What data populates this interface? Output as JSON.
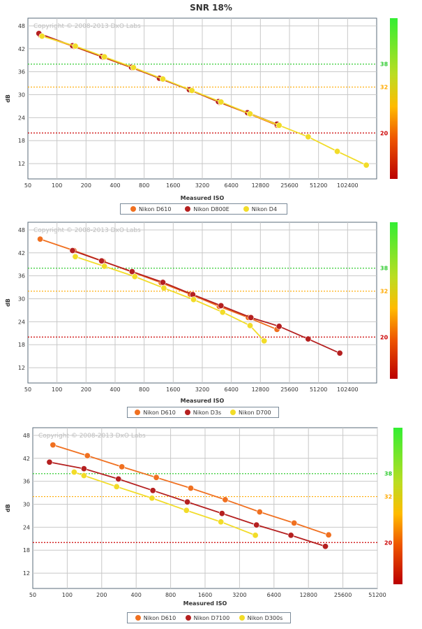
{
  "page": {
    "title": "SNR 18%"
  },
  "chart_data": [
    {
      "type": "line",
      "title": "SNR 18%",
      "watermark": "Copyright © 2008-2013 DxO Labs",
      "xlabel": "Measured ISO",
      "ylabel": "dB",
      "x_scale": "log2",
      "x_ticks": [
        50,
        100,
        200,
        400,
        800,
        1600,
        3200,
        6400,
        12800,
        25600,
        51200,
        102400
      ],
      "xlim": [
        50,
        204800
      ],
      "y_ticks": [
        12,
        18,
        24,
        30,
        36,
        42,
        48
      ],
      "ylim": [
        8,
        50
      ],
      "grid": true,
      "legend_position": "bottom",
      "reference_lines": [
        {
          "value": 38,
          "label": "38",
          "color": "#33cc33"
        },
        {
          "value": 32,
          "label": "32",
          "color": "#ffaa00"
        },
        {
          "value": 20,
          "label": "20",
          "color": "#cc0000"
        }
      ],
      "series": [
        {
          "name": "Nikon D610",
          "color": "#f07020",
          "x": [
            67,
            150,
            300,
            600,
            1200,
            2400,
            4800,
            9600,
            19000
          ],
          "y": [
            45.6,
            42.6,
            39.8,
            37.0,
            34.2,
            31.2,
            28.0,
            25.1,
            22.0
          ]
        },
        {
          "name": "Nikon D800E",
          "color": "#b52020",
          "x": [
            65,
            145,
            290,
            590,
            1150,
            2350,
            4700,
            9400,
            19000
          ],
          "y": [
            46.0,
            42.8,
            40.0,
            37.2,
            34.3,
            31.3,
            28.2,
            25.3,
            22.3
          ]
        },
        {
          "name": "Nikon D4",
          "color": "#f2dc28",
          "x": [
            70,
            155,
            310,
            620,
            1250,
            2500,
            5000,
            10000,
            20000,
            40000,
            80000,
            160000
          ],
          "y": [
            45.3,
            42.7,
            39.9,
            37.1,
            34.1,
            31.1,
            28.1,
            25.0,
            22.0,
            19.0,
            15.2,
            11.6
          ]
        }
      ]
    },
    {
      "type": "line",
      "watermark": "Copyright © 2008-2013 DxO Labs",
      "xlabel": "Measured ISO",
      "ylabel": "dB",
      "x_scale": "log2",
      "x_ticks": [
        50,
        100,
        200,
        400,
        800,
        1600,
        3200,
        6400,
        12800,
        25600,
        51200,
        102400
      ],
      "xlim": [
        50,
        204800
      ],
      "y_ticks": [
        12,
        18,
        24,
        30,
        36,
        42,
        48
      ],
      "ylim": [
        8,
        50
      ],
      "grid": true,
      "legend_position": "bottom",
      "reference_lines": [
        {
          "value": 38,
          "label": "38",
          "color": "#33cc33"
        },
        {
          "value": 32,
          "label": "32",
          "color": "#ffaa00"
        },
        {
          "value": 20,
          "label": "20",
          "color": "#cc0000"
        }
      ],
      "series": [
        {
          "name": "Nikon D610",
          "color": "#f07020",
          "x": [
            67,
            150,
            300,
            600,
            1200,
            2400,
            4800,
            9600,
            19000
          ],
          "y": [
            45.6,
            42.6,
            39.8,
            37.0,
            34.2,
            31.2,
            28.0,
            25.1,
            22.0
          ]
        },
        {
          "name": "Nikon D3s",
          "color": "#b52020",
          "x": [
            145,
            290,
            600,
            1250,
            2550,
            5000,
            10200,
            20000,
            40000,
            85000
          ],
          "y": [
            42.6,
            39.9,
            37.1,
            34.3,
            31.1,
            28.2,
            25.1,
            22.8,
            19.5,
            15.8
          ]
        },
        {
          "name": "Nikon D700",
          "color": "#f2dc28",
          "x": [
            155,
            310,
            640,
            1280,
            2600,
            5200,
            10000,
            14000
          ],
          "y": [
            41.0,
            38.5,
            35.8,
            32.8,
            29.8,
            26.5,
            23.0,
            19.0
          ]
        }
      ]
    },
    {
      "type": "line",
      "watermark": "Copyright © 2008-2013 DxO Labs",
      "xlabel": "Measured ISO",
      "ylabel": "dB",
      "x_scale": "log2",
      "x_ticks": [
        50,
        100,
        200,
        400,
        800,
        1600,
        3200,
        6400,
        12800,
        25600,
        51200
      ],
      "xlim": [
        50,
        51200
      ],
      "y_ticks": [
        12,
        18,
        24,
        30,
        36,
        42,
        48
      ],
      "ylim": [
        8,
        50
      ],
      "grid": true,
      "legend_position": "bottom",
      "reference_lines": [
        {
          "value": 38,
          "label": "38",
          "color": "#33cc33"
        },
        {
          "value": 32,
          "label": "32",
          "color": "#ffaa00"
        },
        {
          "value": 20,
          "label": "20",
          "color": "#cc0000"
        }
      ],
      "series": [
        {
          "name": "Nikon D610",
          "color": "#f07020",
          "x": [
            75,
            150,
            300,
            600,
            1200,
            2400,
            4800,
            9600,
            19200
          ],
          "y": [
            45.5,
            42.7,
            39.8,
            37.0,
            34.2,
            31.2,
            28.0,
            25.1,
            22.0
          ]
        },
        {
          "name": "Nikon D7100",
          "color": "#b52020",
          "x": [
            70,
            140,
            280,
            560,
            1120,
            2250,
            4500,
            9000,
            18000
          ],
          "y": [
            41.0,
            39.3,
            36.6,
            33.6,
            30.6,
            27.6,
            24.6,
            21.9,
            19.0
          ]
        },
        {
          "name": "Nikon D300s",
          "color": "#f2dc28",
          "x": [
            115,
            140,
            270,
            550,
            1100,
            2200,
            4400
          ],
          "y": [
            38.4,
            37.5,
            34.6,
            31.6,
            28.4,
            25.4,
            21.9
          ]
        }
      ]
    }
  ]
}
